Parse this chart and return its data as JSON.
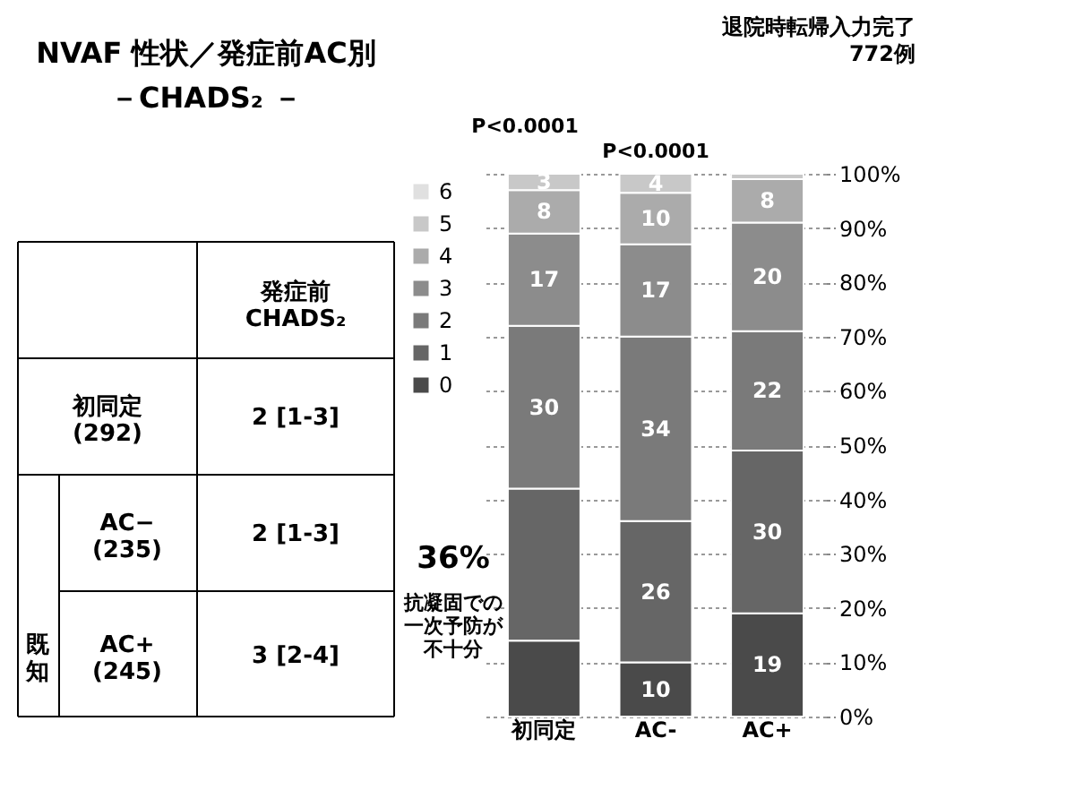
{
  "chart_data": [
    {
      "type": "other",
      "title": "NVAF 性状／発症前AC別",
      "subtitle": "－CHADS₂ －",
      "annotations": [
        "発症前\nCHADS₂",
        "初同定\n(292)",
        "2 [1-3]",
        "既知",
        "AC−\n(235)",
        "2 [1-3]",
        "AC+\n(245)",
        "3 [2-4]"
      ]
    },
    {
      "type": "bar",
      "stacked": true,
      "title": "退院時転帰入力完了\n772例",
      "categories": [
        "初同定",
        "AC-",
        "AC+"
      ],
      "series": [
        {
          "name": "0",
          "color": "#4a4a4a",
          "values": [
            14,
            10,
            19
          ],
          "value_labels": [
            null,
            "10",
            "19"
          ]
        },
        {
          "name": "1",
          "color": "#666666",
          "values": [
            28,
            26,
            30
          ],
          "value_labels": [
            null,
            "26",
            "30"
          ]
        },
        {
          "name": "2",
          "color": "#7a7a7a",
          "values": [
            30,
            34,
            22
          ],
          "value_labels": [
            "30",
            "34",
            "22"
          ]
        },
        {
          "name": "3",
          "color": "#8c8c8c",
          "values": [
            17,
            17,
            20
          ],
          "value_labels": [
            "17",
            "17",
            "20"
          ]
        },
        {
          "name": "4",
          "color": "#ababab",
          "values": [
            8,
            9.5,
            8
          ],
          "value_labels": [
            "8",
            "10",
            "8"
          ]
        },
        {
          "name": "5",
          "color": "#c8c8c8",
          "values": [
            3,
            3.5,
            1
          ],
          "value_labels": [
            "3",
            "4",
            null
          ]
        },
        {
          "name": "6",
          "color": "#e0e0e0",
          "values": [
            null,
            null,
            null
          ]
        }
      ],
      "ylim": [
        0,
        100
      ],
      "yticks": [
        {
          "value": 0,
          "label": "0%"
        },
        {
          "value": 10,
          "label": "10%"
        },
        {
          "value": 20,
          "label": "20%"
        },
        {
          "value": 30,
          "label": "30%"
        },
        {
          "value": 40,
          "label": "40%"
        },
        {
          "value": 50,
          "label": "50%"
        },
        {
          "value": 60,
          "label": "60%"
        },
        {
          "value": 70,
          "label": "70%"
        },
        {
          "value": 80,
          "label": "80%"
        },
        {
          "value": 90,
          "label": "90%"
        },
        {
          "value": 100,
          "label": "100%"
        }
      ],
      "grid": "y",
      "legend": "left",
      "annotations": [
        "P<0.0001",
        "P<0.0001",
        "36%",
        "抗凝固での一次予防が不十分"
      ]
    }
  ]
}
